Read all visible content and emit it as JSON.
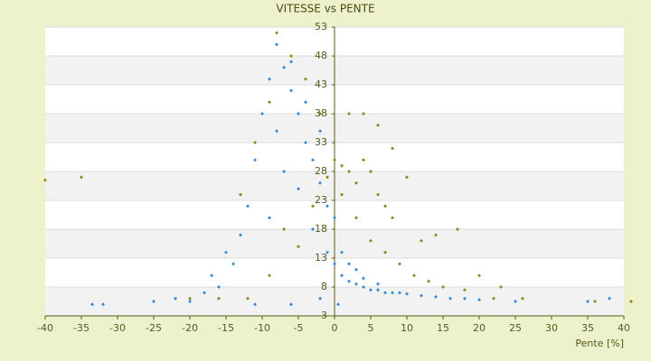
{
  "chart_data": {
    "type": "scatter",
    "title": "VITESSE vs PENTE",
    "x_label": "Pente [%]",
    "xlim": [
      -40,
      40
    ],
    "xticks": [
      -40,
      -35,
      -30,
      -25,
      -20,
      -15,
      -10,
      -5,
      0,
      5,
      10,
      15,
      20,
      25,
      30,
      35,
      40
    ],
    "ylim": [
      3,
      53
    ],
    "yticks": [
      3,
      8,
      13,
      18,
      23,
      28,
      33,
      38,
      43,
      48,
      53
    ],
    "grid": true,
    "series": [
      {
        "color": "#3a8bd6",
        "x": [
          -33.5,
          -32,
          -25,
          -22,
          -20,
          -18,
          -16,
          -14,
          -13,
          -12,
          -11,
          -10,
          -9,
          -8,
          -7,
          -6,
          -5,
          -4,
          -3,
          -2,
          -1,
          0,
          -9,
          -7,
          -5,
          -3,
          -1,
          0,
          1,
          2,
          3,
          4,
          5,
          6,
          7,
          8,
          9,
          10,
          12,
          14,
          16,
          18,
          20,
          25,
          35,
          38,
          -15,
          -17,
          -8,
          -6,
          -4,
          -2,
          1,
          2,
          3,
          4,
          6,
          -11,
          -6,
          -2,
          0.5
        ],
        "values": [
          5,
          5,
          5.5,
          6,
          5.5,
          7,
          8,
          12,
          17,
          22,
          30,
          38,
          44,
          50,
          46,
          42,
          38,
          33,
          30,
          26,
          22,
          20,
          20,
          28,
          25,
          18,
          14,
          12,
          10,
          9,
          8.5,
          8,
          7.5,
          7.5,
          7,
          7,
          7,
          6.8,
          6.5,
          6.3,
          6,
          6,
          5.8,
          5.5,
          5.5,
          6,
          14,
          10,
          35,
          47,
          40,
          35,
          14,
          12,
          11,
          9.5,
          8.5,
          5,
          5,
          6,
          5
        ]
      },
      {
        "color": "#8c8c1e",
        "x": [
          -40,
          -35,
          -13,
          -11,
          -9,
          -8,
          -6,
          -4,
          -2,
          0,
          1,
          2,
          3,
          4,
          5,
          6,
          7,
          8,
          10,
          12,
          14,
          17,
          20,
          23,
          2,
          4,
          6,
          8,
          1,
          3,
          5,
          7,
          9,
          11,
          13,
          15,
          18,
          22,
          26,
          36,
          41,
          -5,
          -3,
          -1,
          -7,
          -9,
          -12,
          -16,
          -20
        ],
        "values": [
          26.5,
          27,
          24,
          33,
          40,
          52,
          48,
          44,
          38,
          30,
          29,
          28,
          26,
          30,
          28,
          24,
          22,
          20,
          27,
          16,
          17,
          18,
          10,
          8,
          38,
          38,
          36,
          32,
          24,
          20,
          16,
          14,
          12,
          10,
          9,
          8,
          7.5,
          6,
          6,
          5.5,
          5.5,
          15,
          22,
          27,
          18,
          10,
          6,
          6,
          6
        ]
      }
    ]
  }
}
